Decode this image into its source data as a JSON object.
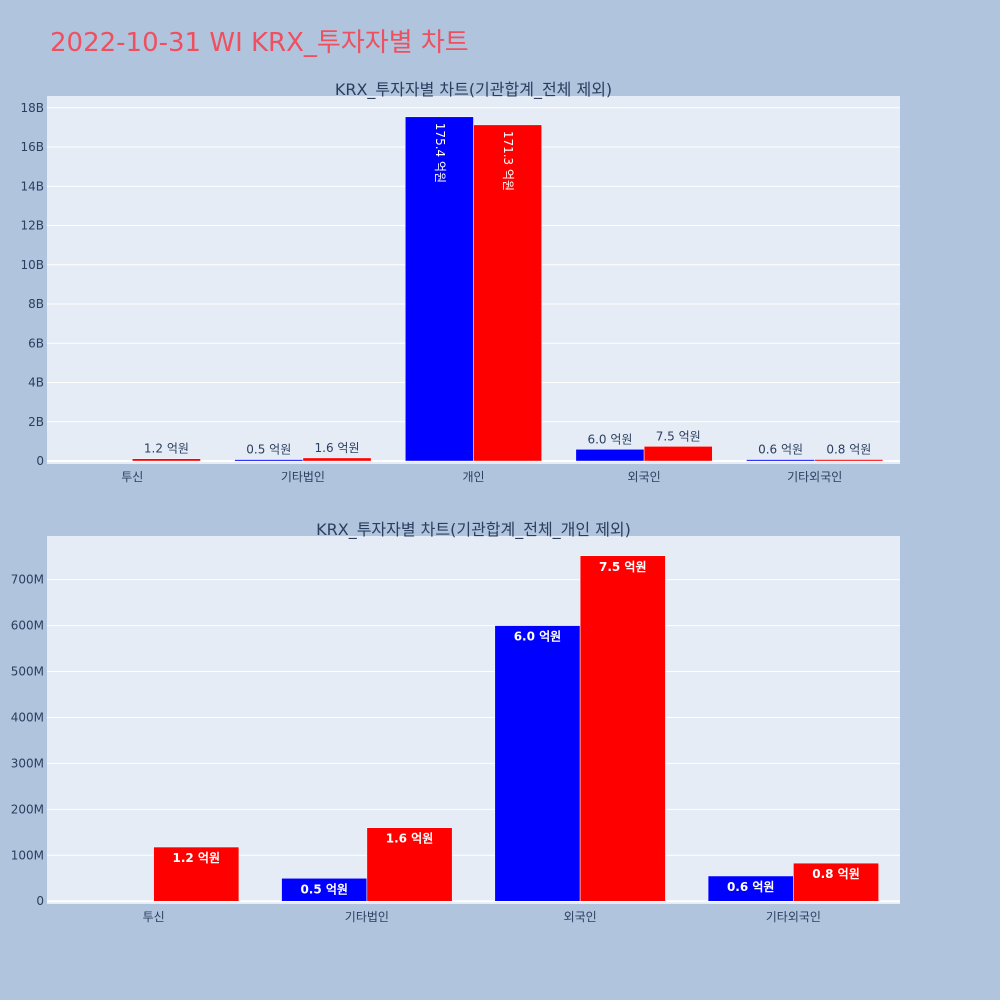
{
  "page": {
    "title": "2022-10-31 WI KRX_투자자별 차트"
  },
  "colors": {
    "background": "#b0c4de",
    "plot_bg": "#e5ecf6",
    "title": "#ef5060",
    "buy": "#0000ff",
    "sell": "#ff0000"
  },
  "chart_data": [
    {
      "type": "bar",
      "title": "KRX_투자자별 차트(기관합계_전체 제외)",
      "categories": [
        "투신",
        "기타법인",
        "개인",
        "외국인",
        "기타외국인"
      ],
      "series": [
        {
          "values": [
            0,
            50000000,
            17540000000,
            600000000,
            60000000
          ],
          "labels": [
            "",
            "0.5 억원",
            "175.4 억원",
            "6.0 억원",
            "0.6 억원"
          ]
        },
        {
          "values": [
            120000000,
            160000000,
            17130000000,
            750000000,
            80000000
          ],
          "labels": [
            "1.2 억원",
            "1.6 억원",
            "171.3 억원",
            "7.5 억원",
            "0.8 억원"
          ]
        }
      ],
      "yticks": [
        0,
        2000000000,
        4000000000,
        6000000000,
        8000000000,
        10000000000,
        12000000000,
        14000000000,
        16000000000,
        18000000000
      ],
      "ytick_labels": [
        "0",
        "2B",
        "4B",
        "6B",
        "8B",
        "10B",
        "12B",
        "14B",
        "16B",
        "18B"
      ],
      "ylim": [
        -150000000,
        18600000000
      ],
      "grid": true,
      "xlabel": "",
      "ylabel": ""
    },
    {
      "type": "bar",
      "title": "KRX_투자자별 차트(기관합계_전체_개인 제외)",
      "categories": [
        "투신",
        "기타법인",
        "외국인",
        "기타외국인"
      ],
      "series": [
        {
          "values": [
            0,
            50000000,
            600000000,
            55000000
          ],
          "labels": [
            "",
            "0.5 억원",
            "6.0 억원",
            "0.6 억원"
          ]
        },
        {
          "values": [
            118000000,
            160000000,
            752000000,
            83000000
          ],
          "labels": [
            "1.2 억원",
            "1.6 억원",
            "7.5 억원",
            "0.8 억원"
          ]
        }
      ],
      "yticks": [
        0,
        100000000,
        200000000,
        300000000,
        400000000,
        500000000,
        600000000,
        700000000
      ],
      "ytick_labels": [
        "0",
        "100M",
        "200M",
        "300M",
        "400M",
        "500M",
        "600M",
        "700M"
      ],
      "ylim": [
        -6000000,
        795000000
      ],
      "grid": true,
      "xlabel": "",
      "ylabel": ""
    }
  ]
}
